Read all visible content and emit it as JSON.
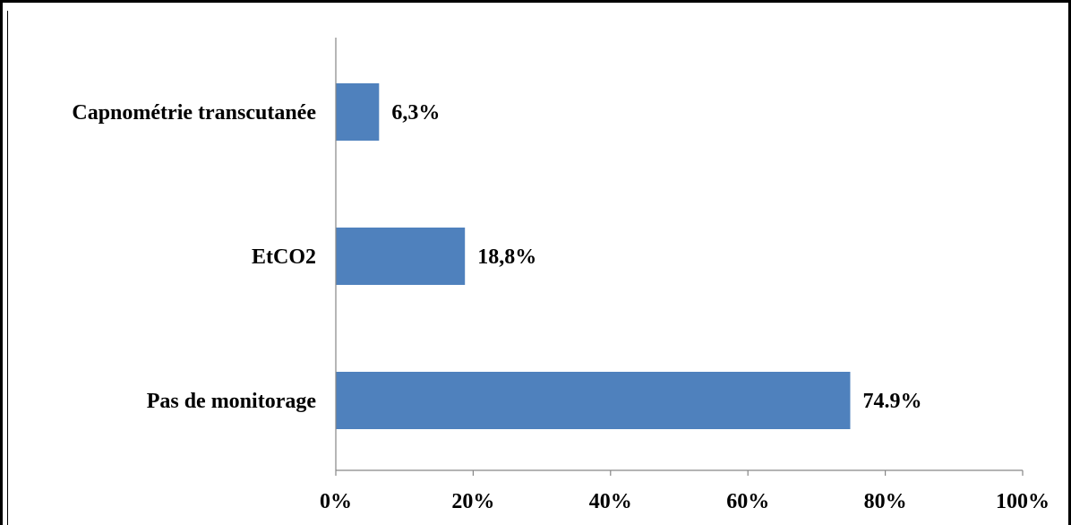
{
  "chart_data": {
    "type": "bar",
    "orientation": "horizontal",
    "categories": [
      "Capnométrie transcutanée",
      "EtCO2",
      "Pas de monitorage"
    ],
    "values": [
      6.3,
      18.8,
      74.9
    ],
    "value_labels": [
      "6,3%",
      "18,8%",
      "74.9%"
    ],
    "xlim": [
      0,
      100
    ],
    "x_ticks": [
      0,
      20,
      40,
      60,
      80,
      100
    ],
    "x_tick_labels": [
      "0%",
      "20%",
      "40%",
      "60%",
      "80%",
      "100%"
    ],
    "grid": false,
    "legend": "none",
    "bar_color": "#4f81bd",
    "title": "",
    "xlabel": "",
    "ylabel": ""
  }
}
